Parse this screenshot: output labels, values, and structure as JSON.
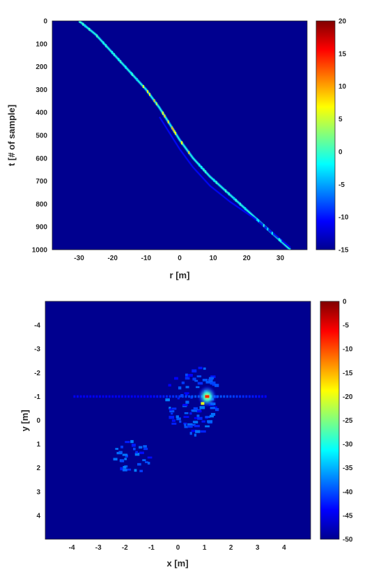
{
  "chart_data": [
    {
      "type": "heatmap",
      "title": "",
      "xlabel": "r [m]",
      "ylabel": "t [# of sample]",
      "xlim": [
        -38,
        38
      ],
      "ylim": [
        1000,
        0
      ],
      "x_ticks": [
        "-30",
        "-20",
        "-10",
        "0",
        "10",
        "20",
        "30"
      ],
      "x_tick_values": [
        -30,
        -20,
        -10,
        0,
        10,
        20,
        30
      ],
      "y_ticks": [
        "0",
        "100",
        "200",
        "300",
        "400",
        "500",
        "600",
        "700",
        "800",
        "900",
        "1000"
      ],
      "y_tick_values": [
        0,
        100,
        200,
        300,
        400,
        500,
        600,
        700,
        800,
        900,
        1000
      ],
      "colorbar": {
        "colormap": "jet",
        "min": -15,
        "max": 20,
        "ticks": [
          "20",
          "15",
          "10",
          "5",
          "0",
          "-5",
          "-10",
          "-15"
        ],
        "tick_values": [
          20,
          15,
          10,
          5,
          0,
          -5,
          -10,
          -15
        ]
      },
      "background_value": -15,
      "features": [
        {
          "kind": "curve",
          "points": [
            [
              -30,
              0
            ],
            [
              -25,
              60
            ],
            [
              -20,
              140
            ],
            [
              -15,
              220
            ],
            [
              -10,
              300
            ],
            [
              -6,
              380
            ],
            [
              -3,
              450
            ],
            [
              0,
              520
            ],
            [
              4,
              600
            ],
            [
              9,
              680
            ],
            [
              15,
              760
            ],
            [
              21,
              840
            ],
            [
              27,
              920
            ],
            [
              33,
              1000
            ]
          ],
          "peak_value": 3
        },
        {
          "kind": "curve",
          "points": [
            [
              -6,
              420
            ],
            [
              -3,
              490
            ],
            [
              0,
              560
            ],
            [
              4,
              640
            ],
            [
              9,
              720
            ],
            [
              15,
              790
            ],
            [
              22,
              860
            ],
            [
              28,
              930
            ],
            [
              33,
              990
            ]
          ],
          "peak_value": -9
        }
      ]
    },
    {
      "type": "heatmap",
      "title": "",
      "xlabel": "x [m]",
      "ylabel": "y [m]",
      "xlim": [
        -5,
        5
      ],
      "ylim": [
        -5,
        5
      ],
      "x_ticks": [
        "-4",
        "-3",
        "-2",
        "-1",
        "0",
        "1",
        "2",
        "3",
        "4"
      ],
      "x_tick_values": [
        -4,
        -3,
        -2,
        -1,
        0,
        1,
        2,
        3,
        4
      ],
      "y_ticks": [
        "-4",
        "-3",
        "-2",
        "-1",
        "0",
        "1",
        "2",
        "3",
        "4"
      ],
      "y_tick_values": [
        -4,
        -3,
        -2,
        -1,
        0,
        1,
        2,
        3,
        4
      ],
      "colorbar": {
        "colormap": "jet",
        "min": -50,
        "max": 0,
        "ticks": [
          "0",
          "-5",
          "-10",
          "-15",
          "-20",
          "-25",
          "-30",
          "-35",
          "-40",
          "-45",
          "-50"
        ],
        "tick_values": [
          0,
          -5,
          -10,
          -15,
          -20,
          -25,
          -30,
          -35,
          -40,
          -45,
          -50
        ]
      },
      "background_value": -50,
      "features": [
        {
          "kind": "line",
          "y": -1.0,
          "x_range": [
            -3.9,
            3.4
          ],
          "value": -40
        },
        {
          "kind": "peak",
          "x": 1.1,
          "y": -1.0,
          "value": -8
        },
        {
          "kind": "blob",
          "x_range": [
            -0.5,
            1.5
          ],
          "y_range": [
            -2.4,
            0.6
          ],
          "value": -38
        },
        {
          "kind": "blob",
          "x_range": [
            -2.5,
            -1.0
          ],
          "y_range": [
            0.8,
            2.2
          ],
          "value": -38
        }
      ]
    }
  ]
}
